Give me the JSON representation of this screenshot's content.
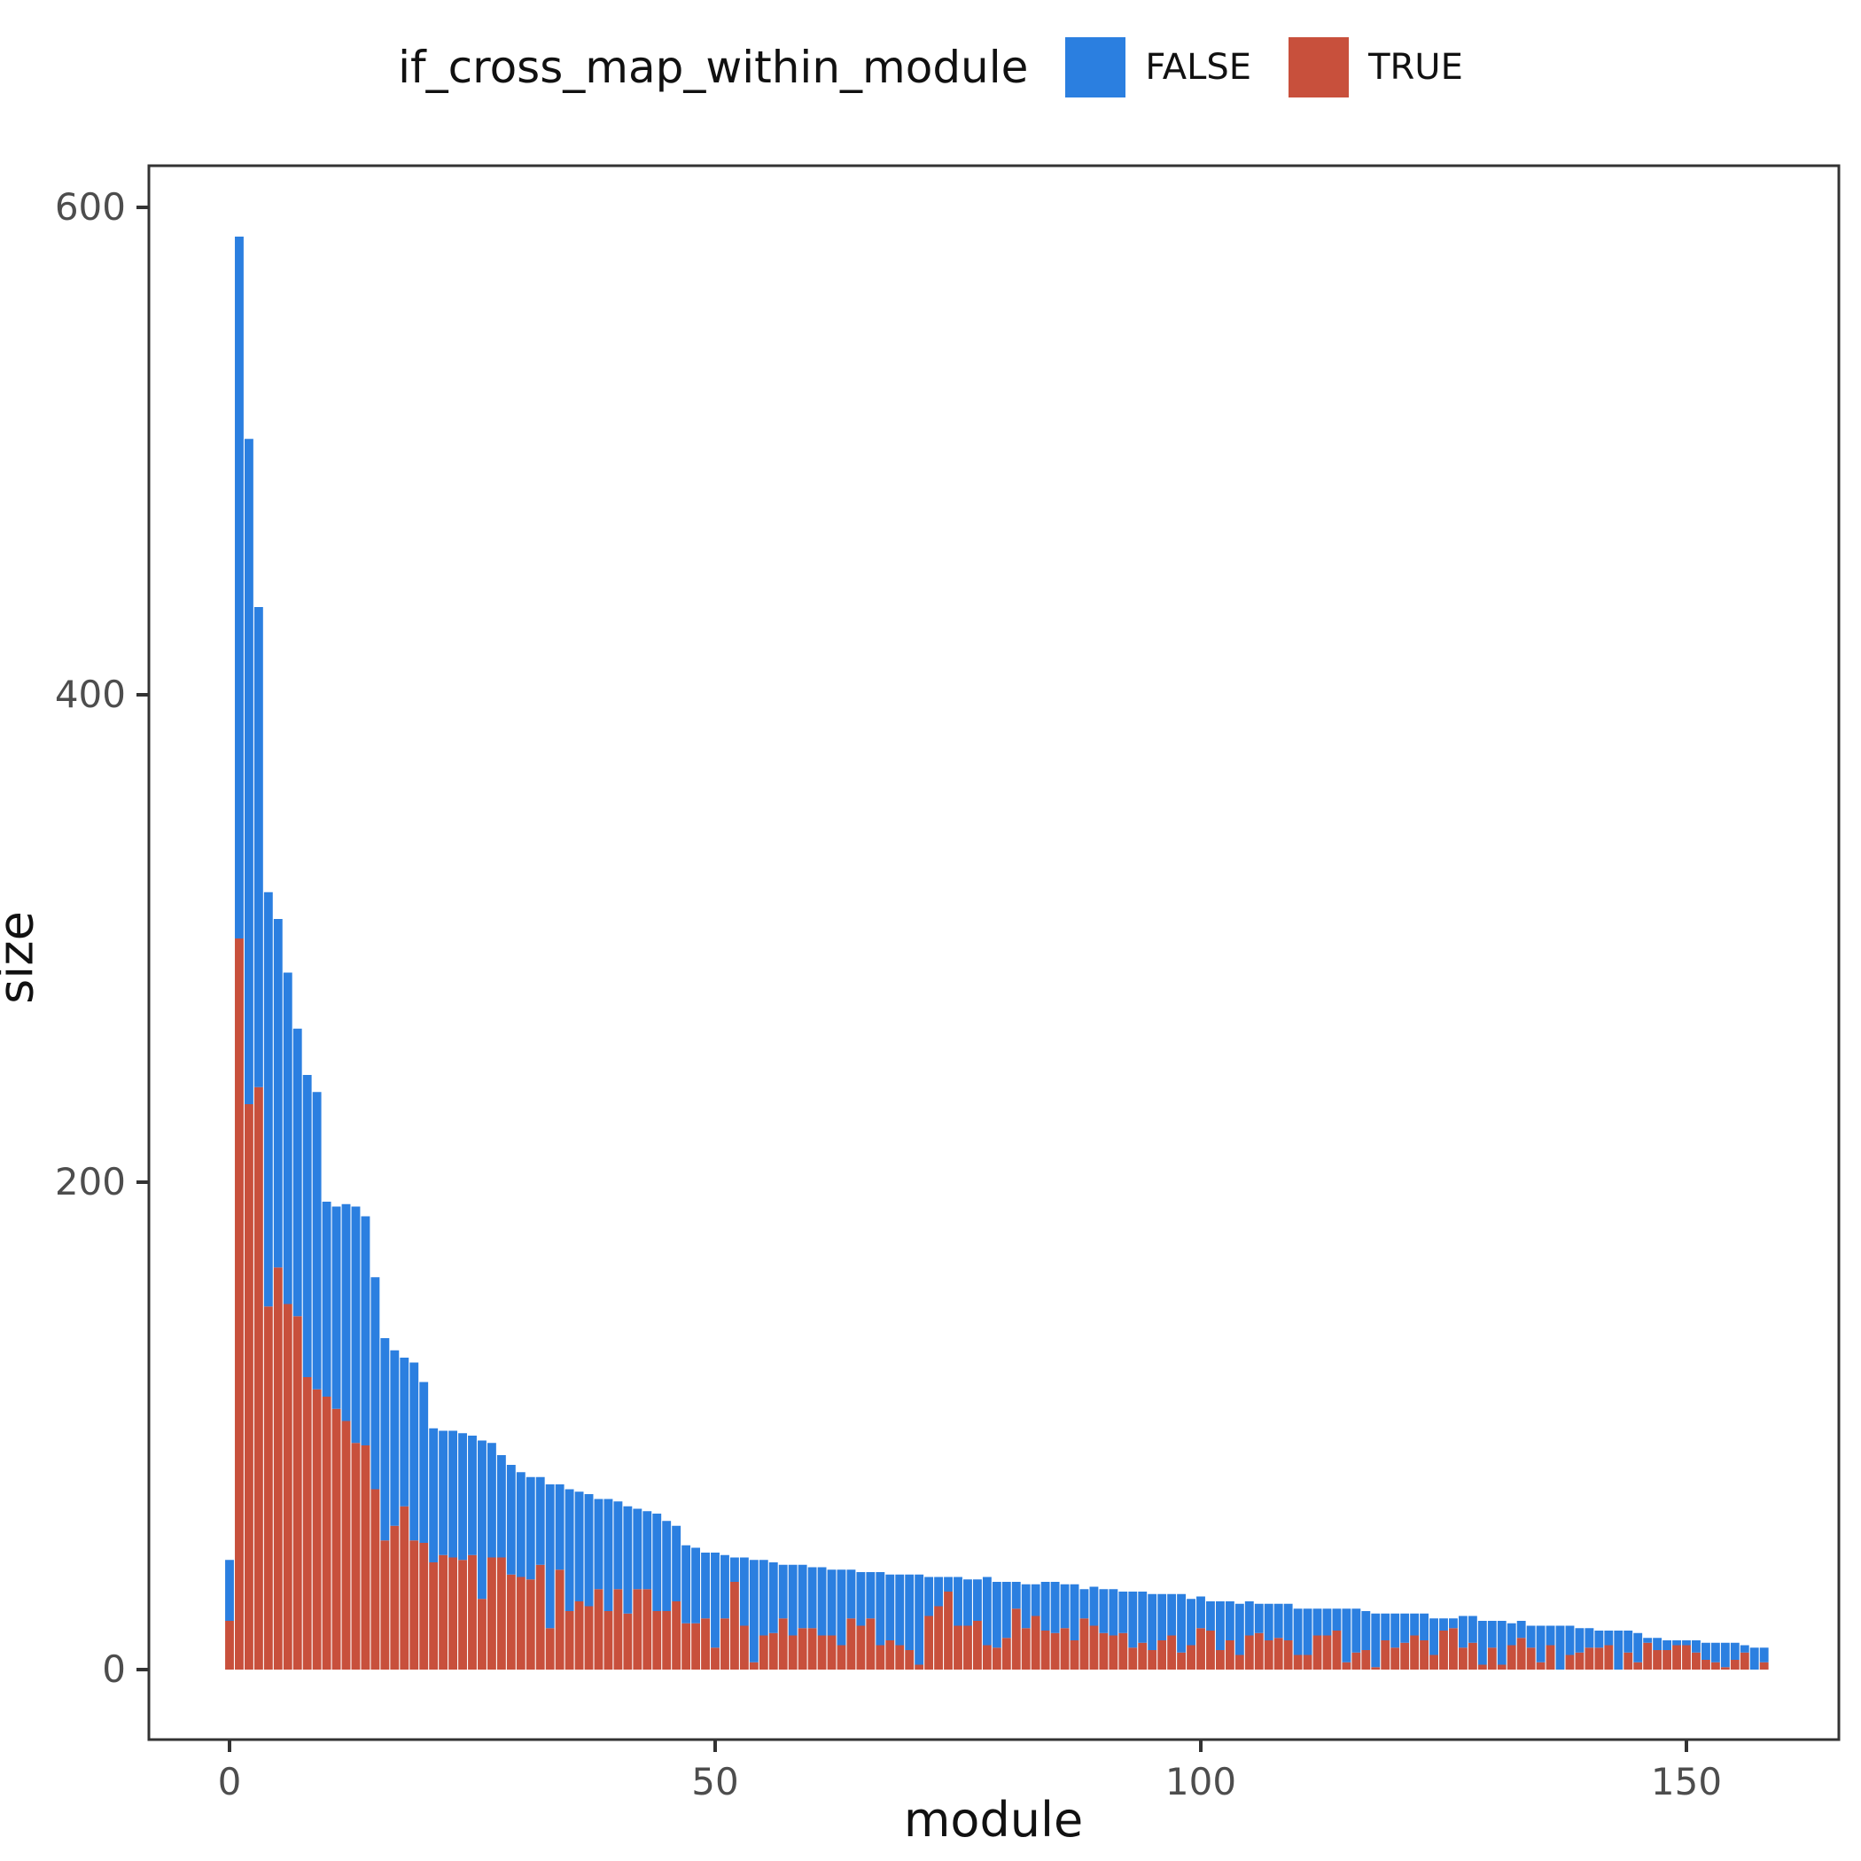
{
  "legend": {
    "title": "if_cross_map_within_module",
    "items": [
      {
        "label": "FALSE",
        "color": "#2b7fe0"
      },
      {
        "label": "TRUE",
        "color": "#c8503c"
      }
    ]
  },
  "axes": {
    "x_label": "module",
    "y_label": "size"
  },
  "plot_style": {
    "background": "#ffffff",
    "panel_border_color": "#333333",
    "tick_color": "#333333",
    "tick_label_color": "#4d4d4d"
  },
  "chart_data": {
    "type": "bar",
    "stacked": true,
    "title": "if_cross_map_within_module",
    "xlabel": "module",
    "ylabel": "size",
    "x_ticks": [
      0,
      50,
      100,
      150
    ],
    "y_ticks": [
      0,
      200,
      400,
      600
    ],
    "xlim": [
      -8,
      166
    ],
    "ylim": [
      -29,
      617
    ],
    "grid": false,
    "legend_position": "top",
    "x": {
      "start": 0,
      "step": 1,
      "count": 159
    },
    "series": [
      {
        "name": "FALSE",
        "color": "#2b7fe0",
        "stack_order": "top",
        "values": [
          25,
          288,
          273,
          197,
          170,
          143,
          136,
          118,
          124,
          122,
          80,
          83,
          89,
          97,
          94,
          87,
          83,
          72,
          61,
          73,
          66,
          55,
          51,
          52,
          52,
          49,
          65,
          47,
          42,
          45,
          43,
          42,
          36,
          59,
          35,
          50,
          45,
          46,
          37,
          46,
          36,
          44,
          33,
          32,
          40,
          37,
          31,
          32,
          31,
          27,
          39,
          26,
          10,
          28,
          42,
          31,
          29,
          22,
          29,
          26,
          25,
          28,
          27,
          31,
          20,
          22,
          19,
          30,
          27,
          29,
          31,
          37,
          16,
          12,
          6,
          20,
          19,
          17,
          28,
          27,
          23,
          11,
          18,
          13,
          20,
          21,
          18,
          23,
          12,
          16,
          18,
          19,
          17,
          23,
          21,
          23,
          19,
          17,
          24,
          19,
          13,
          12,
          20,
          16,
          21,
          14,
          12,
          15,
          14,
          15,
          19,
          19,
          11,
          11,
          9,
          22,
          18,
          16,
          22,
          11,
          14,
          12,
          9,
          11,
          15,
          5,
          4,
          13,
          11,
          18,
          11,
          18,
          9,
          7,
          9,
          15,
          8,
          18,
          12,
          10,
          8,
          7,
          6,
          16,
          9,
          12,
          2,
          5,
          4,
          2,
          2,
          5,
          7,
          8,
          10,
          7,
          3,
          9,
          6
        ]
      },
      {
        "name": "TRUE",
        "color": "#c8503c",
        "stack_order": "bottom",
        "values": [
          20,
          300,
          232,
          239,
          149,
          165,
          150,
          145,
          120,
          115,
          112,
          107,
          102,
          93,
          92,
          74,
          53,
          59,
          67,
          53,
          52,
          44,
          47,
          46,
          45,
          47,
          29,
          46,
          46,
          39,
          38,
          37,
          43,
          17,
          41,
          24,
          28,
          26,
          33,
          24,
          33,
          23,
          33,
          33,
          24,
          24,
          28,
          19,
          19,
          21,
          9,
          21,
          36,
          18,
          3,
          14,
          15,
          21,
          14,
          17,
          17,
          14,
          14,
          10,
          21,
          18,
          21,
          10,
          12,
          10,
          8,
          2,
          22,
          26,
          32,
          18,
          18,
          20,
          10,
          9,
          13,
          25,
          17,
          22,
          16,
          15,
          17,
          12,
          21,
          18,
          15,
          14,
          15,
          9,
          11,
          8,
          12,
          14,
          7,
          10,
          17,
          16,
          8,
          12,
          6,
          14,
          15,
          12,
          13,
          12,
          6,
          6,
          14,
          14,
          16,
          3,
          7,
          8,
          1,
          12,
          9,
          11,
          14,
          12,
          6,
          16,
          17,
          9,
          11,
          2,
          9,
          2,
          10,
          13,
          9,
          3,
          10,
          0,
          6,
          7,
          9,
          9,
          10,
          0,
          7,
          3,
          11,
          8,
          8,
          10,
          10,
          7,
          4,
          3,
          1,
          4,
          7,
          0,
          3
        ]
      }
    ]
  }
}
